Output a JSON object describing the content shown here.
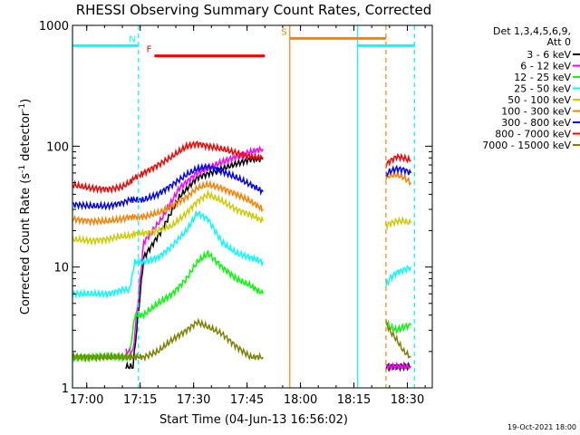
{
  "chart_data": {
    "type": "line",
    "title": "RHESSI Observing Summary Count Rates, Corrected",
    "xlabel": "Start Time (04-Jun-13 16:56:02)",
    "ylabel_main": "Corrected Count Rate (s",
    "ylabel_sup1": "-1",
    "ylabel_mid": " detector",
    "ylabel_sup2": "-1",
    "ylabel_end": ")",
    "yscale": "log",
    "ylim": [
      1,
      1000
    ],
    "xlim_minutes": [
      0,
      101
    ],
    "x_ticks": [
      {
        "minute": 4,
        "label": "17:00"
      },
      {
        "minute": 19,
        "label": "17:15"
      },
      {
        "minute": 34,
        "label": "17:30"
      },
      {
        "minute": 49,
        "label": "17:45"
      },
      {
        "minute": 64,
        "label": "18:00"
      },
      {
        "minute": 79,
        "label": "18:15"
      },
      {
        "minute": 94,
        "label": "18:30"
      }
    ],
    "y_ticks": [
      {
        "value": 1,
        "label": "1"
      },
      {
        "value": 10,
        "label": "10"
      },
      {
        "value": 100,
        "label": "100"
      },
      {
        "value": 1000,
        "label": "1000"
      }
    ],
    "legend_header": [
      "Det 1,3,4,5,6,9,",
      "Att 0"
    ],
    "legend_placement": "right",
    "series": [
      {
        "name": "3 - 6 keV",
        "color": "#000000",
        "segments": [
          {
            "x": [
              15,
              17,
              20,
              25,
              30,
              35,
              40,
              45,
              50,
              53.5
            ],
            "y": [
              1.5,
              1.5,
              12,
              20,
              38,
              55,
              62,
              70,
              78,
              78
            ]
          },
          {
            "x": [
              88,
              89,
              91,
              93,
              95
            ],
            "y": [
              1.5,
              1.5,
              1.5,
              1.5,
              1.5
            ]
          }
        ]
      },
      {
        "name": "6 - 12 keV",
        "color": "#ff00ff",
        "segments": [
          {
            "x": [
              15,
              17,
              20,
              25,
              30,
              35,
              40,
              45,
              50,
              53.5
            ],
            "y": [
              2,
              2,
              16,
              25,
              45,
              60,
              70,
              80,
              90,
              95
            ]
          },
          {
            "x": [
              88,
              89,
              91,
              93,
              95
            ],
            "y": [
              1.5,
              1.5,
              1.5,
              1.5,
              1.5
            ]
          }
        ]
      },
      {
        "name": "12 - 25 keV",
        "color": "#00ff00",
        "segments": [
          {
            "x": [
              0,
              5,
              10,
              14,
              16,
              17.5,
              20,
              24,
              28,
              32,
              35,
              38,
              42,
              46,
              50,
              53.5
            ],
            "y": [
              1.8,
              1.8,
              1.8,
              1.8,
              1.8,
              4,
              4,
              5,
              6,
              8,
              11,
              13,
              10,
              8,
              7,
              6
            ]
          },
          {
            "x": [
              88,
              89,
              91,
              93,
              95
            ],
            "y": [
              3.5,
              3.2,
              3,
              3.2,
              3.3
            ]
          }
        ]
      },
      {
        "name": "25 - 50 keV",
        "color": "#00ffff",
        "segments": [
          {
            "x": [
              0,
              5,
              10,
              14,
              16,
              17.5,
              20,
              24,
              28,
              32,
              35,
              38,
              42,
              46,
              50,
              53.5
            ],
            "y": [
              6,
              6,
              6,
              6.5,
              6.5,
              11,
              11,
              12,
              15,
              20,
              28,
              25,
              16,
              13,
              12,
              11
            ]
          },
          {
            "x": [
              88,
              89,
              91,
              93,
              95
            ],
            "y": [
              7,
              8,
              9,
              9.5,
              10
            ]
          }
        ]
      },
      {
        "name": "50 - 100 keV",
        "color": "#cccc00",
        "segments": [
          {
            "x": [
              0,
              5,
              10,
              14,
              16,
              17.5,
              20,
              24,
              28,
              32,
              35,
              38,
              42,
              46,
              50,
              53.5
            ],
            "y": [
              17,
              16.5,
              17,
              18,
              18,
              19,
              19,
              20,
              22,
              28,
              35,
              40,
              35,
              30,
              27,
              24
            ]
          },
          {
            "x": [
              88,
              89,
              91,
              93,
              95
            ],
            "y": [
              22,
              23,
              24,
              24,
              23
            ]
          }
        ]
      },
      {
        "name": "100 - 300 keV",
        "color": "#ff8000",
        "segments": [
          {
            "x": [
              0,
              5,
              10,
              14,
              16,
              17.5,
              20,
              24,
              28,
              32,
              35,
              38,
              42,
              46,
              50,
              53.5
            ],
            "y": [
              25,
              24,
              24,
              25,
              26,
              26,
              26,
              28,
              32,
              38,
              45,
              48,
              45,
              40,
              35,
              30
            ]
          },
          {
            "x": [
              88,
              89,
              91,
              93,
              95
            ],
            "y": [
              55,
              57,
              58,
              55,
              50
            ]
          }
        ]
      },
      {
        "name": "300 - 800 keV",
        "color": "#0000ff",
        "segments": [
          {
            "x": [
              0,
              5,
              10,
              14,
              16,
              17.5,
              20,
              24,
              28,
              32,
              35,
              38,
              42,
              46,
              50,
              53.5
            ],
            "y": [
              33,
              32,
              32,
              34,
              36,
              36,
              36,
              40,
              48,
              58,
              65,
              68,
              62,
              55,
              48,
              42
            ]
          },
          {
            "x": [
              88,
              89,
              91,
              93,
              95
            ],
            "y": [
              58,
              62,
              65,
              64,
              60
            ]
          }
        ]
      },
      {
        "name": "800 - 7000 keV",
        "color": "#ff0000",
        "segments": [
          {
            "x": [
              0,
              5,
              10,
              14,
              16,
              17.5,
              20,
              24,
              28,
              32,
              35,
              38,
              42,
              46,
              50,
              53.5
            ],
            "y": [
              48,
              45,
              44,
              46,
              50,
              55,
              60,
              70,
              82,
              100,
              105,
              100,
              95,
              88,
              82,
              80
            ]
          },
          {
            "x": [
              88,
              89,
              91,
              93,
              95
            ],
            "y": [
              70,
              75,
              82,
              80,
              76
            ]
          }
        ]
      },
      {
        "name": "7000 - 15000 keV",
        "color": "#808000",
        "segments": [
          {
            "x": [
              0,
              5,
              10,
              14,
              16,
              17.5,
              20,
              24,
              28,
              32,
              35,
              38,
              42,
              46,
              50,
              53.5
            ],
            "y": [
              1.8,
              1.8,
              1.8,
              1.8,
              1.8,
              1.8,
              1.8,
              2,
              2.5,
              3,
              3.5,
              3.2,
              2.8,
              2.2,
              1.8,
              1.8
            ]
          },
          {
            "x": [
              88,
              89,
              91,
              93,
              95
            ],
            "y": [
              3.5,
              3,
              2.5,
              2,
              1.8
            ]
          }
        ]
      }
    ],
    "flag_bars": [
      {
        "label": "",
        "color": "#00ffff",
        "x_start": 0,
        "x_end": 18.5,
        "level": 680
      },
      {
        "label": "",
        "color": "#00ffff",
        "x_start": 80,
        "x_end": 96,
        "level": 680
      },
      {
        "label": "N",
        "color": "#00ffff",
        "x_start": 18.5,
        "x_end": 18.5,
        "level": 680
      },
      {
        "label": "F",
        "color": "#ff0000",
        "x_start": 23,
        "x_end": 54,
        "level": 560
      },
      {
        "label": "S",
        "color": "#ff8000",
        "x_start": 61,
        "x_end": 88,
        "level": 780
      }
    ],
    "vertical_markers": [
      {
        "x": 0,
        "color": "#00ffff",
        "style": "solid"
      },
      {
        "x": 18.5,
        "color": "#00ffff",
        "style": "dashed"
      },
      {
        "x": 61,
        "color": "#ff8000",
        "style": "solid"
      },
      {
        "x": 80,
        "color": "#00ffff",
        "style": "solid"
      },
      {
        "x": 88,
        "color": "#ff8000",
        "style": "dashed"
      },
      {
        "x": 96,
        "color": "#00ffff",
        "style": "dashed"
      }
    ],
    "grid": false,
    "footer_timestamp": "19-Oct-2021 18:00"
  }
}
